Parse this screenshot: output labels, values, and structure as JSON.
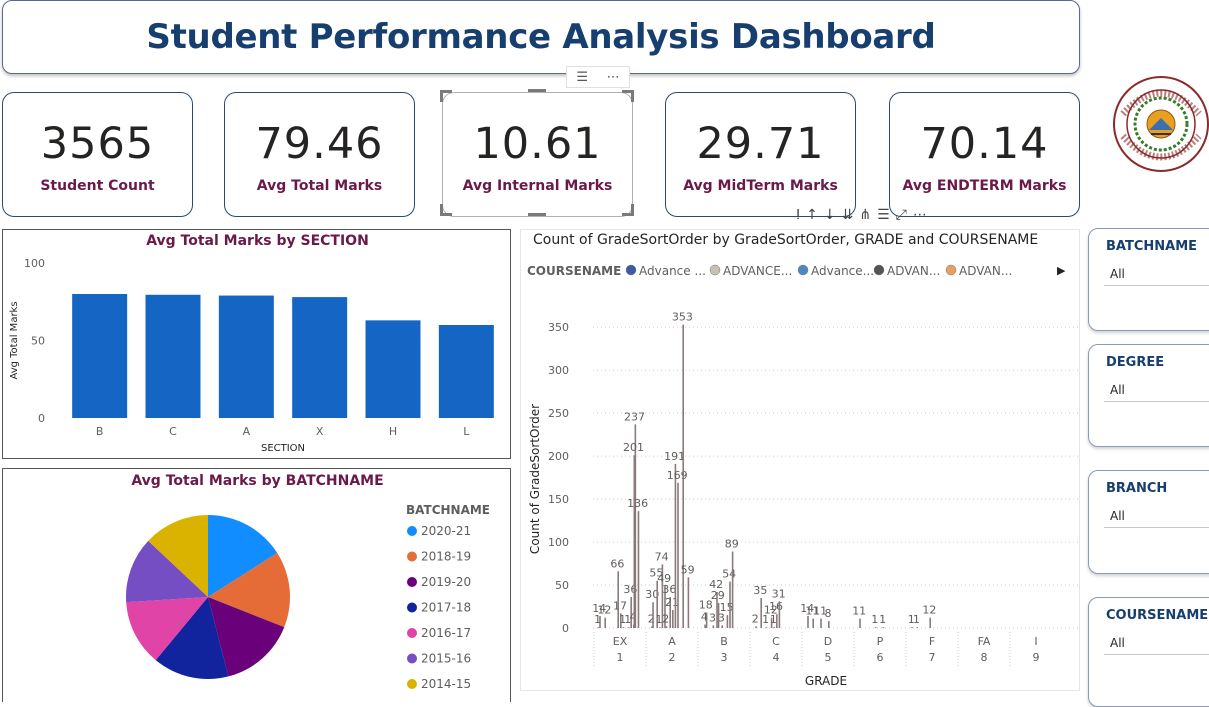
{
  "header": {
    "title": "Student Performance Analysis Dashboard"
  },
  "cards": [
    {
      "value": "3565",
      "label": "Student Count"
    },
    {
      "value": "79.46",
      "label": "Avg Total Marks"
    },
    {
      "value": "10.61",
      "label": "Avg Internal Marks"
    },
    {
      "value": "29.71",
      "label": "Avg MidTerm Marks"
    },
    {
      "value": "70.14",
      "label": "Avg ENDTERM Marks"
    }
  ],
  "bar_chart": {
    "title": "Avg Total Marks by SECTION",
    "xlabel": "SECTION",
    "ylabel": "Avg Total Marks"
  },
  "pie_chart": {
    "title": "Avg Total Marks by BATCHNAME",
    "legend_title": "BATCHNAME"
  },
  "grade_chart": {
    "title": "Count of GradeSortOrder by GradeSortOrder, GRADE and COURSENAME",
    "legend_field": "COURSENAME",
    "legend_items": [
      "Advance ...",
      "ADVANCE...",
      "Advance...",
      "ADVAN...",
      "ADVAN..."
    ],
    "xlabel": "GRADE",
    "ylabel": "Count of GradeSortOrder"
  },
  "slicers": [
    {
      "title": "BATCHNAME",
      "value": "All"
    },
    {
      "title": "DEGREE",
      "value": "All"
    },
    {
      "title": "BRANCH",
      "value": "All"
    },
    {
      "title": "COURSENAME",
      "value": "All"
    }
  ],
  "colors": {
    "title": "#163e6e",
    "label": "#6b1a48",
    "bar": "#1566c4"
  },
  "chart_data": [
    {
      "type": "bar",
      "title": "Avg Total Marks by SECTION",
      "xlabel": "SECTION",
      "ylabel": "Avg Total Marks",
      "categories": [
        "B",
        "C",
        "A",
        "X",
        "H",
        "L"
      ],
      "values": [
        80,
        79.5,
        79,
        78,
        63,
        60
      ],
      "ylim": [
        0,
        100
      ],
      "yticks": [
        0,
        50,
        100
      ],
      "color": "#1566c4"
    },
    {
      "type": "pie",
      "title": "Avg Total Marks by BATCHNAME",
      "legend_title": "BATCHNAME",
      "labels": [
        "2020-21",
        "2018-19",
        "2019-20",
        "2017-18",
        "2016-17",
        "2015-16",
        "2014-15"
      ],
      "values": [
        16,
        15,
        15,
        15,
        13,
        13,
        13
      ],
      "colors": [
        "#118dff",
        "#e66c37",
        "#6b007b",
        "#12239e",
        "#e044a7",
        "#744ec2",
        "#d9b300"
      ]
    },
    {
      "type": "bar",
      "title": "Count of GradeSortOrder by GradeSortOrder, GRADE and COURSENAME",
      "xlabel": "GRADE",
      "ylabel": "Count of GradeSortOrder",
      "ylim": [
        0,
        370
      ],
      "yticks": [
        0,
        50,
        100,
        150,
        200,
        250,
        300,
        350
      ],
      "groups": [
        {
          "grade": "EX",
          "order": "1"
        },
        {
          "grade": "A",
          "order": "2"
        },
        {
          "grade": "B",
          "order": "3"
        },
        {
          "grade": "C",
          "order": "4"
        },
        {
          "grade": "D",
          "order": "5"
        },
        {
          "grade": "P",
          "order": "6"
        },
        {
          "grade": "F",
          "order": "7"
        },
        {
          "grade": "FA",
          "order": "8"
        },
        {
          "grade": "I",
          "order": "9"
        }
      ],
      "bars": [
        {
          "group": 0,
          "offset": 0.1,
          "value": 14,
          "label": "14"
        },
        {
          "group": 0,
          "offset": 0.07,
          "value": 1,
          "label": "1"
        },
        {
          "group": 0,
          "offset": 0.2,
          "value": 12,
          "label": "12"
        },
        {
          "group": 0,
          "offset": 0.45,
          "value": 66,
          "label": "66"
        },
        {
          "group": 0,
          "offset": 0.5,
          "value": 17,
          "label": "17"
        },
        {
          "group": 0,
          "offset": 0.55,
          "value": 1,
          "label": "1"
        },
        {
          "group": 0,
          "offset": 0.65,
          "value": 1,
          "label": "1"
        },
        {
          "group": 0,
          "offset": 0.7,
          "value": 36,
          "label": "36"
        },
        {
          "group": 0,
          "offset": 0.75,
          "value": 4,
          "label": "4"
        },
        {
          "group": 0,
          "offset": 0.78,
          "value": 237,
          "label": "237"
        },
        {
          "group": 0,
          "offset": 0.76,
          "value": 201,
          "label": "201"
        },
        {
          "group": 0,
          "offset": 0.84,
          "value": 136,
          "label": "136"
        },
        {
          "group": 1,
          "offset": 0.1,
          "value": 2,
          "label": "2"
        },
        {
          "group": 1,
          "offset": 0.12,
          "value": 30,
          "label": "30"
        },
        {
          "group": 1,
          "offset": 0.2,
          "value": 55,
          "label": "55"
        },
        {
          "group": 1,
          "offset": 0.25,
          "value": 1,
          "label": "1"
        },
        {
          "group": 1,
          "offset": 0.3,
          "value": 74,
          "label": "74"
        },
        {
          "group": 1,
          "offset": 0.35,
          "value": 49,
          "label": "49"
        },
        {
          "group": 1,
          "offset": 0.38,
          "value": 2,
          "label": "2"
        },
        {
          "group": 1,
          "offset": 0.45,
          "value": 36,
          "label": "36"
        },
        {
          "group": 1,
          "offset": 0.5,
          "value": 21,
          "label": "21"
        },
        {
          "group": 1,
          "offset": 0.55,
          "value": 191,
          "label": "191"
        },
        {
          "group": 1,
          "offset": 0.6,
          "value": 169,
          "label": "169"
        },
        {
          "group": 1,
          "offset": 0.7,
          "value": 353,
          "label": "353"
        },
        {
          "group": 1,
          "offset": 0.8,
          "value": 59,
          "label": "59"
        },
        {
          "group": 2,
          "offset": 0.15,
          "value": 18,
          "label": "18"
        },
        {
          "group": 2,
          "offset": 0.12,
          "value": 4,
          "label": "4"
        },
        {
          "group": 2,
          "offset": 0.28,
          "value": 3,
          "label": "3"
        },
        {
          "group": 2,
          "offset": 0.35,
          "value": 42,
          "label": "42"
        },
        {
          "group": 2,
          "offset": 0.38,
          "value": 29,
          "label": "29"
        },
        {
          "group": 2,
          "offset": 0.45,
          "value": 3,
          "label": "3"
        },
        {
          "group": 2,
          "offset": 0.55,
          "value": 15,
          "label": "15"
        },
        {
          "group": 2,
          "offset": 0.6,
          "value": 54,
          "label": "54"
        },
        {
          "group": 2,
          "offset": 0.65,
          "value": 89,
          "label": "89"
        },
        {
          "group": 3,
          "offset": 0.1,
          "value": 2,
          "label": "2"
        },
        {
          "group": 3,
          "offset": 0.2,
          "value": 35,
          "label": "35"
        },
        {
          "group": 3,
          "offset": 0.3,
          "value": 1,
          "label": "1"
        },
        {
          "group": 3,
          "offset": 0.4,
          "value": 12,
          "label": "12"
        },
        {
          "group": 3,
          "offset": 0.45,
          "value": 1,
          "label": "1"
        },
        {
          "group": 3,
          "offset": 0.5,
          "value": 16,
          "label": "16"
        },
        {
          "group": 3,
          "offset": 0.55,
          "value": 31,
          "label": "31"
        },
        {
          "group": 4,
          "offset": 0.1,
          "value": 14,
          "label": "14"
        },
        {
          "group": 4,
          "offset": 0.2,
          "value": 11,
          "label": "11"
        },
        {
          "group": 4,
          "offset": 0.35,
          "value": 11,
          "label": "11"
        },
        {
          "group": 4,
          "offset": 0.5,
          "value": 8,
          "label": "8"
        },
        {
          "group": 5,
          "offset": 0.1,
          "value": 11,
          "label": "11"
        },
        {
          "group": 5,
          "offset": 0.4,
          "value": 1,
          "label": "1"
        },
        {
          "group": 5,
          "offset": 0.55,
          "value": 1,
          "label": "1"
        },
        {
          "group": 6,
          "offset": 0.1,
          "value": 1,
          "label": "1"
        },
        {
          "group": 6,
          "offset": 0.2,
          "value": 1,
          "label": "1"
        },
        {
          "group": 6,
          "offset": 0.45,
          "value": 12,
          "label": "12"
        }
      ]
    }
  ]
}
